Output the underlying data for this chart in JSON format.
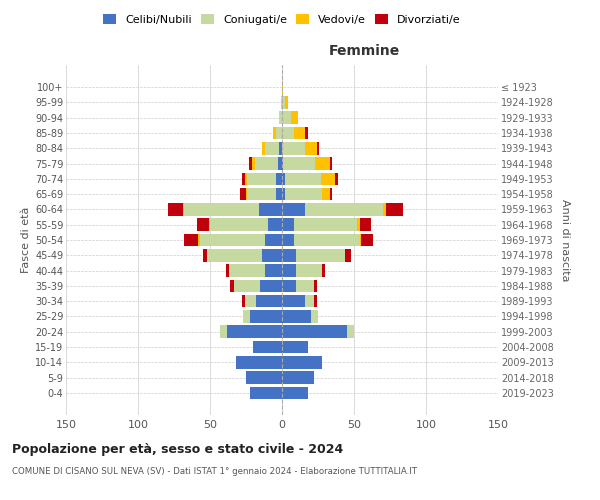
{
  "age_groups": [
    "0-4",
    "5-9",
    "10-14",
    "15-19",
    "20-24",
    "25-29",
    "30-34",
    "35-39",
    "40-44",
    "45-49",
    "50-54",
    "55-59",
    "60-64",
    "65-69",
    "70-74",
    "75-79",
    "80-84",
    "85-89",
    "90-94",
    "95-99",
    "100+"
  ],
  "birth_years": [
    "2019-2023",
    "2014-2018",
    "2009-2013",
    "2004-2008",
    "1999-2003",
    "1994-1998",
    "1989-1993",
    "1984-1988",
    "1979-1983",
    "1974-1978",
    "1969-1973",
    "1964-1968",
    "1959-1963",
    "1954-1958",
    "1949-1953",
    "1944-1948",
    "1939-1943",
    "1934-1938",
    "1929-1933",
    "1924-1928",
    "≤ 1923"
  ],
  "male": {
    "celibe": [
      22,
      25,
      32,
      20,
      38,
      22,
      18,
      15,
      12,
      14,
      12,
      10,
      16,
      4,
      4,
      3,
      2,
      0,
      0,
      0,
      0
    ],
    "coniugato": [
      0,
      0,
      0,
      0,
      5,
      5,
      8,
      18,
      25,
      38,
      45,
      40,
      52,
      20,
      20,
      16,
      10,
      4,
      2,
      1,
      0
    ],
    "vedovo": [
      0,
      0,
      0,
      0,
      0,
      0,
      0,
      0,
      0,
      0,
      1,
      1,
      1,
      1,
      2,
      2,
      2,
      2,
      0,
      0,
      0
    ],
    "divorziato": [
      0,
      0,
      0,
      0,
      0,
      0,
      2,
      3,
      2,
      3,
      10,
      8,
      10,
      4,
      2,
      2,
      0,
      0,
      0,
      0,
      0
    ]
  },
  "female": {
    "nubile": [
      18,
      22,
      28,
      18,
      45,
      20,
      16,
      10,
      10,
      10,
      8,
      8,
      16,
      2,
      2,
      1,
      0,
      0,
      0,
      0,
      0
    ],
    "coniugata": [
      0,
      0,
      0,
      0,
      5,
      5,
      6,
      12,
      18,
      34,
      46,
      44,
      54,
      26,
      25,
      22,
      16,
      8,
      6,
      2,
      0
    ],
    "vedova": [
      0,
      0,
      0,
      0,
      0,
      0,
      0,
      0,
      0,
      0,
      1,
      2,
      2,
      5,
      10,
      10,
      8,
      8,
      5,
      2,
      1
    ],
    "divorziata": [
      0,
      0,
      0,
      0,
      0,
      0,
      2,
      2,
      2,
      4,
      8,
      8,
      12,
      2,
      2,
      2,
      2,
      2,
      0,
      0,
      0
    ]
  },
  "colors": {
    "celibe": "#4472c4",
    "coniugato": "#c5d9a0",
    "vedovo": "#ffc000",
    "divorziato": "#c0000b"
  },
  "legend_labels": [
    "Celibi/Nubili",
    "Coniugati/e",
    "Vedovi/e",
    "Divorziati/e"
  ],
  "title": "Popolazione per età, sesso e stato civile - 2024",
  "subtitle": "COMUNE DI CISANO SUL NEVA (SV) - Dati ISTAT 1° gennaio 2024 - Elaborazione TUTTITALIA.IT",
  "xlabel_right": "Femmine",
  "ylabel_left": "Fasce di età",
  "ylabel_right": "Anni di nascita",
  "xlim": 150,
  "bg_color": "#ffffff",
  "grid_color": "#cccccc"
}
